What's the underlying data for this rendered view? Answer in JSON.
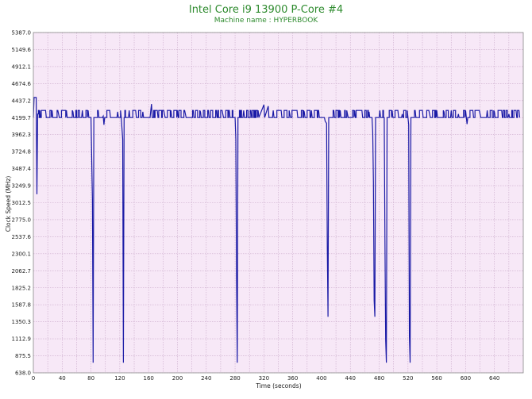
{
  "colors": {
    "plot_background": "#f7e8f7",
    "grid": "#c9a9c9",
    "line": "#1a1aa6",
    "title": "#2e8b2e"
  },
  "chart_data": {
    "type": "line",
    "title": "Intel Core i9 13900 P-Core #4",
    "subtitle": "Machine name : HYPERBOOK",
    "xlabel": "Time (seconds)",
    "ylabel": "Clock Speed (MHz)",
    "xlim": [
      0,
      680
    ],
    "ylim": [
      638.0,
      5387.0
    ],
    "x_ticks": [
      0,
      40,
      80,
      120,
      160,
      200,
      240,
      280,
      320,
      360,
      400,
      440,
      480,
      520,
      560,
      600,
      640
    ],
    "y_ticks": [
      "638.0",
      "875.5",
      "1112.9",
      "1350.3",
      "1587.8",
      "1825.2",
      "2062.7",
      "2300.1",
      "2537.6",
      "2775.0",
      "3012.5",
      "3249.9",
      "3487.4",
      "3724.8",
      "3962.3",
      "4199.7",
      "4437.2",
      "4674.6",
      "4912.1",
      "5149.6",
      "5387.0"
    ],
    "grid": true,
    "baseline_mhz": 4199.7,
    "fluctuation_mhz": [
      4200,
      4300
    ],
    "series": [
      {
        "points": [
          [
            0,
            4200
          ],
          [
            1,
            4480
          ],
          [
            4,
            4480
          ],
          [
            5,
            3130
          ],
          [
            6,
            4250
          ],
          [
            10,
            4200
          ],
          [
            17,
            4300
          ],
          [
            18,
            4200
          ],
          [
            26,
            4300
          ],
          [
            27,
            4200
          ],
          [
            35,
            4250
          ],
          [
            36,
            4200
          ],
          [
            46,
            4300
          ],
          [
            47,
            4200
          ],
          [
            55,
            4280
          ],
          [
            56,
            4200
          ],
          [
            68,
            4300
          ],
          [
            69,
            4200
          ],
          [
            76,
            4300
          ],
          [
            77,
            4200
          ],
          [
            80,
            4200
          ],
          [
            82,
            3050
          ],
          [
            83,
            780
          ],
          [
            84,
            4200
          ],
          [
            90,
            4300
          ],
          [
            91,
            4200
          ],
          [
            97,
            4220
          ],
          [
            98,
            4100
          ],
          [
            99,
            4200
          ],
          [
            106,
            4300
          ],
          [
            107,
            4200
          ],
          [
            117,
            4280
          ],
          [
            118,
            4200
          ],
          [
            122,
            4200
          ],
          [
            124,
            3900
          ],
          [
            125,
            780
          ],
          [
            126,
            4200
          ],
          [
            133,
            4300
          ],
          [
            134,
            4200
          ],
          [
            142,
            4300
          ],
          [
            143,
            4200
          ],
          [
            152,
            4280
          ],
          [
            153,
            4200
          ],
          [
            163,
            4300
          ],
          [
            164,
            4390
          ],
          [
            165,
            4200
          ],
          [
            172,
            4300
          ],
          [
            173,
            4200
          ],
          [
            182,
            4250
          ],
          [
            183,
            4200
          ],
          [
            191,
            4300
          ],
          [
            192,
            4200
          ],
          [
            200,
            4300
          ],
          [
            201,
            4200
          ],
          [
            211,
            4250
          ],
          [
            212,
            4200
          ],
          [
            222,
            4300
          ],
          [
            223,
            4200
          ],
          [
            232,
            4280
          ],
          [
            233,
            4200
          ],
          [
            243,
            4300
          ],
          [
            244,
            4200
          ],
          [
            254,
            4300
          ],
          [
            255,
            4200
          ],
          [
            263,
            4250
          ],
          [
            264,
            4200
          ],
          [
            272,
            4300
          ],
          [
            273,
            4200
          ],
          [
            280,
            4200
          ],
          [
            281,
            3900
          ],
          [
            282,
            2000
          ],
          [
            283,
            780
          ],
          [
            284,
            4200
          ],
          [
            292,
            4300
          ],
          [
            293,
            4200
          ],
          [
            302,
            4300
          ],
          [
            303,
            4200
          ],
          [
            312,
            4300
          ],
          [
            313,
            4200
          ],
          [
            320,
            4380
          ],
          [
            321,
            4200
          ],
          [
            326,
            4360
          ],
          [
            327,
            4200
          ],
          [
            333,
            4300
          ],
          [
            334,
            4200
          ],
          [
            344,
            4300
          ],
          [
            345,
            4200
          ],
          [
            356,
            4250
          ],
          [
            357,
            4200
          ],
          [
            366,
            4300
          ],
          [
            367,
            4200
          ],
          [
            376,
            4280
          ],
          [
            377,
            4200
          ],
          [
            386,
            4300
          ],
          [
            387,
            4200
          ],
          [
            396,
            4300
          ],
          [
            397,
            4200
          ],
          [
            404,
            4200
          ],
          [
            405,
            4150
          ],
          [
            407,
            4120
          ],
          [
            408,
            2400
          ],
          [
            409,
            1420
          ],
          [
            410,
            4200
          ],
          [
            417,
            4300
          ],
          [
            418,
            4200
          ],
          [
            426,
            4300
          ],
          [
            427,
            4200
          ],
          [
            436,
            4250
          ],
          [
            437,
            4200
          ],
          [
            446,
            4300
          ],
          [
            447,
            4200
          ],
          [
            456,
            4300
          ],
          [
            457,
            4200
          ],
          [
            466,
            4280
          ],
          [
            467,
            4200
          ],
          [
            470,
            4200
          ],
          [
            471,
            4000
          ],
          [
            472,
            3300
          ],
          [
            473,
            1650
          ],
          [
            474,
            1420
          ],
          [
            475,
            4200
          ],
          [
            481,
            4300
          ],
          [
            482,
            4200
          ],
          [
            487,
            4200
          ],
          [
            488,
            2500
          ],
          [
            489,
            1100
          ],
          [
            490,
            780
          ],
          [
            491,
            4200
          ],
          [
            498,
            4300
          ],
          [
            499,
            4200
          ],
          [
            506,
            4300
          ],
          [
            507,
            4200
          ],
          [
            512,
            4250
          ],
          [
            513,
            4200
          ],
          [
            520,
            4200
          ],
          [
            521,
            4100
          ],
          [
            522,
            1150
          ],
          [
            523,
            780
          ],
          [
            524,
            4200
          ],
          [
            530,
            4300
          ],
          [
            531,
            4200
          ],
          [
            540,
            4300
          ],
          [
            541,
            4200
          ],
          [
            550,
            4250
          ],
          [
            551,
            4200
          ],
          [
            560,
            4300
          ],
          [
            561,
            4200
          ],
          [
            570,
            4280
          ],
          [
            571,
            4200
          ],
          [
            580,
            4300
          ],
          [
            581,
            4200
          ],
          [
            590,
            4250
          ],
          [
            591,
            4200
          ],
          [
            600,
            4300
          ],
          [
            601,
            4200
          ],
          [
            602,
            4110
          ],
          [
            603,
            4200
          ],
          [
            610,
            4300
          ],
          [
            611,
            4200
          ],
          [
            620,
            4250
          ],
          [
            621,
            4200
          ],
          [
            630,
            4300
          ],
          [
            631,
            4200
          ],
          [
            640,
            4280
          ],
          [
            641,
            4200
          ],
          [
            650,
            4300
          ],
          [
            651,
            4200
          ],
          [
            660,
            4250
          ],
          [
            661,
            4200
          ],
          [
            670,
            4300
          ],
          [
            671,
            4200
          ],
          [
            675,
            4200
          ]
        ]
      }
    ]
  }
}
